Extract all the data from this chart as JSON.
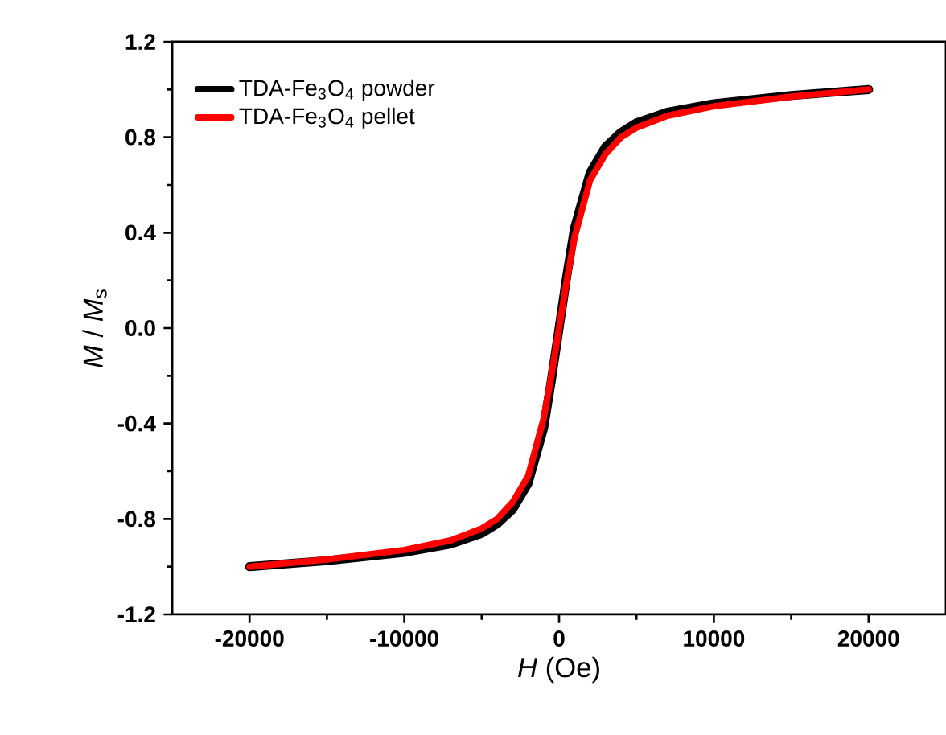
{
  "chart_data": {
    "type": "line",
    "xlabel": "*H* (Oe)",
    "ylabel": "*M* / *M*$_{s}$",
    "xlim": [
      -25000,
      25000
    ],
    "ylim": [
      -1.2,
      1.2
    ],
    "xticks": [
      -20000,
      -10000,
      0,
      10000,
      20000
    ],
    "yticks": [
      {
        "value": -1.2,
        "label": "-1.2"
      },
      {
        "value": -0.8,
        "label": "-0.8"
      },
      {
        "value": -0.4,
        "label": "-0.4"
      },
      {
        "value": 0,
        "label": "0.0"
      },
      {
        "value": 0.4,
        "label": "0.4"
      },
      {
        "value": 0.8,
        "label": "0.8"
      },
      {
        "value": 1.2,
        "label": "1.2"
      }
    ],
    "legend": "top left",
    "series": [
      {
        "name": "TDA-Fe$_{3}$O$_{4}$ powder",
        "color": "#000000",
        "x": [
          -20000,
          -15000,
          -10000,
          -7000,
          -5000,
          -4000,
          -3000,
          -2000,
          -1000,
          -500,
          0,
          500,
          1000,
          2000,
          3000,
          4000,
          5000,
          7000,
          10000,
          15000,
          20000
        ],
        "values": [
          -1.0,
          -0.975,
          -0.94,
          -0.905,
          -0.86,
          -0.82,
          -0.76,
          -0.65,
          -0.42,
          -0.22,
          0.0,
          0.22,
          0.42,
          0.65,
          0.76,
          0.82,
          0.86,
          0.905,
          0.94,
          0.975,
          1.0
        ]
      },
      {
        "name": "TDA-Fe$_{3}$O$_{4}$ pellet",
        "color": "#ff0000",
        "x": [
          -20000,
          -15000,
          -10000,
          -7000,
          -5000,
          -4000,
          -3000,
          -2000,
          -1000,
          -500,
          0,
          500,
          1000,
          2000,
          3000,
          4000,
          5000,
          7000,
          10000,
          15000,
          20000
        ],
        "values": [
          -1.0,
          -0.97,
          -0.93,
          -0.89,
          -0.84,
          -0.8,
          -0.73,
          -0.62,
          -0.38,
          -0.2,
          0.0,
          0.2,
          0.38,
          0.62,
          0.73,
          0.8,
          0.84,
          0.89,
          0.93,
          0.97,
          1.0
        ]
      }
    ]
  }
}
